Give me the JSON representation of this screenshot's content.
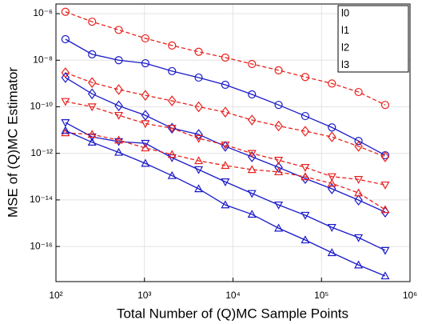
{
  "chart_data": {
    "type": "line",
    "xlabel": "Total Number of (Q)MC Sample Points",
    "ylabel": "MSE of (Q)MC Estimator",
    "log_x": true,
    "log_y": true,
    "grid": true,
    "legend": [
      "l0",
      "l1",
      "l2",
      "l3"
    ],
    "legend_loc": "upper right",
    "xlim": [
      100,
      1000000
    ],
    "ylim": [
      3.1e-18,
      2.6e-06
    ],
    "xticks": [
      {
        "value": 100,
        "label": "10²"
      },
      {
        "value": 1000,
        "label": "10³"
      },
      {
        "value": 10000,
        "label": "10⁴"
      },
      {
        "value": 100000,
        "label": "10⁵"
      },
      {
        "value": 1000000,
        "label": "10⁶"
      }
    ],
    "yticks": [
      {
        "value": 1e-16,
        "label": "10⁻¹⁶"
      },
      {
        "value": 1e-14,
        "label": "10⁻¹⁴"
      },
      {
        "value": 1e-12,
        "label": "10⁻¹²"
      },
      {
        "value": 1e-10,
        "label": "10⁻¹⁰"
      },
      {
        "value": 1e-08,
        "label": "10⁻⁸"
      },
      {
        "value": 1e-06,
        "label": "10⁻⁶"
      }
    ],
    "x": [
      128,
      256,
      512,
      1024,
      2048,
      4096,
      8192,
      16384,
      32768,
      65536,
      131072,
      262144,
      524288
    ],
    "series": [
      {
        "color": "#e8211d",
        "dashed": true,
        "marker": "o",
        "values": [
          1.2e-06,
          4.5e-07,
          2e-07,
          8.7e-08,
          4.3e-08,
          2.3e-08,
          1.3e-08,
          6.9e-09,
          3.7e-09,
          1.9e-09,
          1e-09,
          4.3e-10,
          1.2e-10
        ]
      },
      {
        "color": "#1a1ac8",
        "dashed": false,
        "marker": "o",
        "values": [
          8e-08,
          1.8e-08,
          1e-08,
          7.4e-09,
          3.4e-09,
          1.8e-09,
          8.8e-10,
          3.4e-10,
          1.2e-10,
          4e-11,
          1.3e-11,
          3.4e-12,
          8.3e-13
        ]
      },
      {
        "color": "#e8211d",
        "dashed": true,
        "marker": "d",
        "values": [
          2.9e-09,
          1.1e-09,
          5.5e-10,
          3.1e-10,
          1.8e-10,
          1e-10,
          5.9e-11,
          2.7e-11,
          1.5e-11,
          8.9e-12,
          5.1e-12,
          2e-12,
          7.1e-13
        ]
      },
      {
        "color": "#1a1ac8",
        "dashed": false,
        "marker": "d",
        "values": [
          1.8e-09,
          3.6e-10,
          1.1e-10,
          4.3e-11,
          1.2e-11,
          6.5e-12,
          2e-12,
          7.1e-13,
          2.5e-13,
          8.3e-14,
          3e-14,
          9.8e-15,
          3e-15
        ]
      },
      {
        "color": "#e8211d",
        "dashed": true,
        "marker": "v",
        "values": [
          1.7e-10,
          1e-10,
          4.3e-11,
          1.9e-11,
          1.2e-11,
          4.4e-12,
          2.3e-12,
          1e-12,
          5.1e-13,
          2.5e-13,
          1e-13,
          7.6e-14,
          4.4e-14
        ]
      },
      {
        "color": "#1a1ac8",
        "dashed": false,
        "marker": "v",
        "values": [
          2.1e-11,
          5.1e-12,
          3.2e-12,
          2.7e-12,
          6.5e-13,
          2e-13,
          6e-14,
          1.9e-14,
          6.1e-15,
          2.2e-15,
          6.6e-16,
          2.4e-16,
          6.8e-17
        ]
      },
      {
        "color": "#e8211d",
        "dashed": true,
        "marker": "^",
        "values": [
          7.6e-12,
          6.5e-12,
          3.7e-12,
          1.7e-12,
          8.9e-13,
          4.8e-13,
          3e-13,
          2e-13,
          1.6e-13,
          9.8e-14,
          5.1e-14,
          2e-14,
          3.8e-15
        ]
      },
      {
        "color": "#1a1ac8",
        "dashed": false,
        "marker": "^",
        "values": [
          9.5e-12,
          3e-12,
          1.1e-12,
          3.7e-13,
          1.1e-13,
          3e-14,
          6.1e-15,
          2.4e-15,
          6.1e-16,
          1.9e-16,
          5.4e-17,
          1.6e-17,
          5.4e-18
        ]
      }
    ]
  }
}
